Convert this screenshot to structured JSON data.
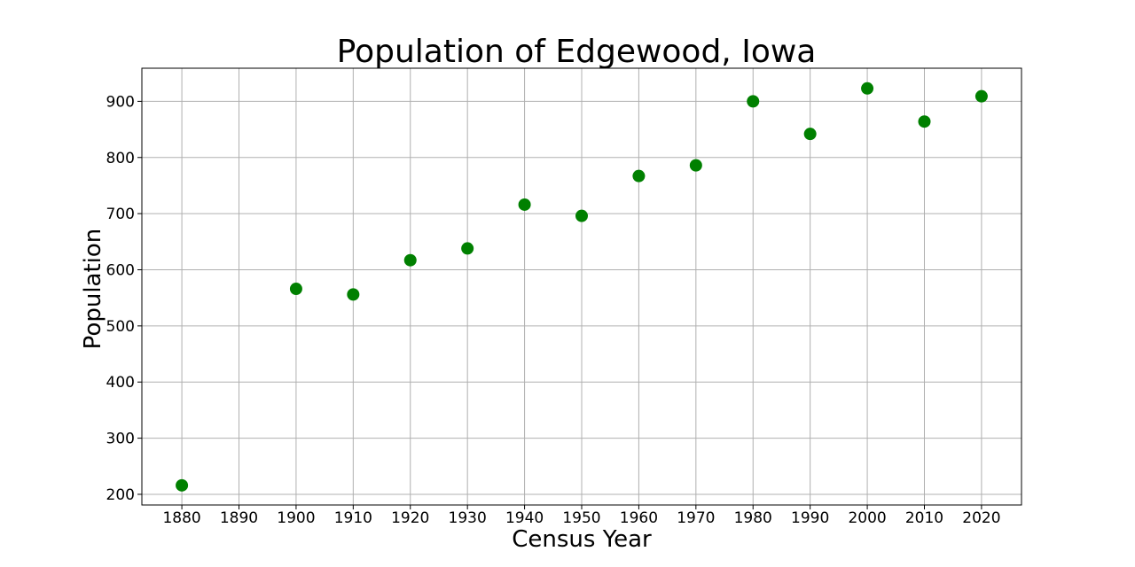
{
  "chart_data": {
    "type": "scatter",
    "title": "Population of Edgewood, Iowa",
    "xlabel": "Census Year",
    "ylabel": "Population",
    "x": [
      1880,
      1900,
      1910,
      1920,
      1930,
      1940,
      1950,
      1960,
      1970,
      1980,
      1990,
      2000,
      2010,
      2020
    ],
    "y": [
      216,
      566,
      556,
      617,
      638,
      716,
      696,
      767,
      786,
      900,
      842,
      923,
      864,
      909
    ],
    "x_ticks": [
      1880,
      1890,
      1900,
      1910,
      1920,
      1930,
      1940,
      1950,
      1960,
      1970,
      1980,
      1990,
      2000,
      2010,
      2020
    ],
    "y_ticks": [
      200,
      300,
      400,
      500,
      600,
      700,
      800,
      900
    ],
    "xlim": [
      1873,
      2027
    ],
    "ylim": [
      181,
      959
    ],
    "grid": true,
    "marker_color": "#008000"
  }
}
